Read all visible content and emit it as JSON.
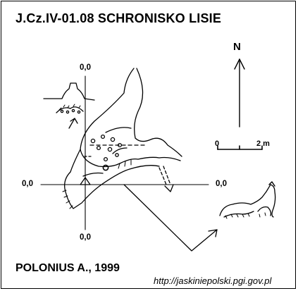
{
  "title": "J.Cz.IV-01.08  SCHRONISKO LISIE",
  "author": "POLONIUS A., 1999",
  "source_url": "http://jaskiniepolski.pgi.gov.pl",
  "north": "N",
  "coordinates": {
    "top": "0,0",
    "left": "0,0",
    "right": "0,0",
    "bottom": "0,0"
  },
  "scale_bar": {
    "start_label": "0",
    "end_label": "2 m"
  }
}
